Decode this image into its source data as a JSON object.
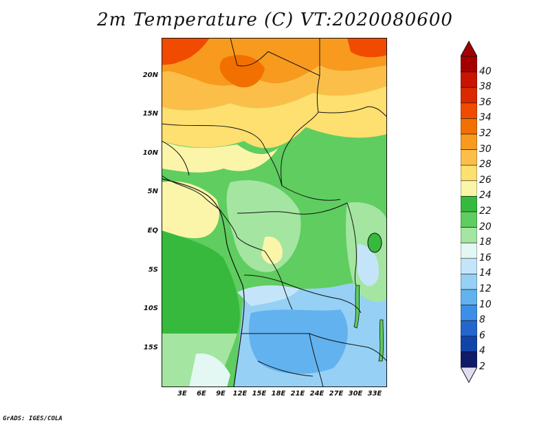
{
  "title": "2m Temperature (C) VT:2020080600",
  "y_axis": {
    "labels": [
      "20N",
      "15N",
      "10N",
      "5N",
      "EQ",
      "5S",
      "10S",
      "15S"
    ]
  },
  "x_axis": {
    "labels": [
      "3E",
      "6E",
      "9E",
      "12E",
      "15E",
      "18E",
      "21E",
      "24E",
      "27E",
      "30E",
      "33E"
    ]
  },
  "colorbar": {
    "labels": [
      "40",
      "38",
      "36",
      "34",
      "32",
      "30",
      "28",
      "26",
      "24",
      "22",
      "20",
      "18",
      "16",
      "14",
      "12",
      "10",
      "8",
      "6",
      "4",
      "2"
    ],
    "colors": [
      "#a50000",
      "#c81400",
      "#dc2800",
      "#f04b00",
      "#f27000",
      "#f79a1e",
      "#fbbf49",
      "#fde070",
      "#fbf5a9",
      "#36b93c",
      "#5fcd5f",
      "#a4e5a1",
      "#e3f8f3",
      "#c4e5f9",
      "#96d0f5",
      "#62b2ef",
      "#3c8fe6",
      "#2466cc",
      "#1144a8",
      "#101a6a"
    ],
    "below_color": "#e2dcf0"
  },
  "footer": "GrADS: IGES/COLA"
}
